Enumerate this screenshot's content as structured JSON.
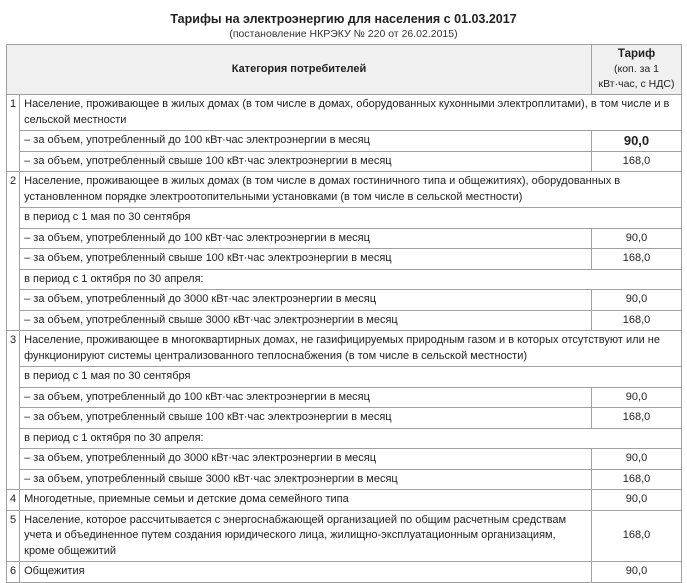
{
  "title": "Тарифы на электроэнергию для населения с 01.03.2017",
  "subtitle": "(постановление НКРЭКУ № 220 от 26.02.2015)",
  "table": {
    "header": {
      "category": "Категория потребителей",
      "tariff_title": "Тариф",
      "tariff_unit": "(коп. за 1 кВт·час, с НДС)"
    },
    "groups": [
      {
        "num": "1",
        "rows": [
          {
            "text": "Население, проживающее в жилых домах (в том числе в домах, оборудованных кухонными электроплитами), в том числе и в сельской местности"
          },
          {
            "text": "– за объем, употребленный до 100 кВт·час электроэнергии в месяц",
            "tariff": "90,0",
            "bold": true
          },
          {
            "text": "– за объем, употребленный свыше 100 кВт·час электроэнергии в месяц",
            "tariff": "168,0"
          }
        ]
      },
      {
        "num": "2",
        "rows": [
          {
            "text": "Население, проживающее в жилых домах (в том числе в домах гостиничного типа и общежитиях), оборудованных в установленном порядке электроотопительными установками (в том числе в сельской местности)"
          },
          {
            "text": "в период с 1 мая по 30 сентября"
          },
          {
            "text": "– за объем, употребленный до 100 кВт·час электроэнергии в месяц",
            "tariff": "90,0"
          },
          {
            "text": "– за объем, употребленный свыше 100 кВт·час электроэнергии в месяц",
            "tariff": "168,0"
          },
          {
            "text": "в период с 1 октября по 30 апреля:"
          },
          {
            "text": "– за объем, употребленный до 3000 кВт·час электроэнергии в месяц",
            "tariff": "90,0"
          },
          {
            "text": "– за объем, употребленный свыше 3000 кВт·час электроэнергии в месяц",
            "tariff": "168,0"
          }
        ]
      },
      {
        "num": "3",
        "rows": [
          {
            "text": "Население, проживающее в многоквартирных домах, не газифицируемых природным газом и в которых отсутствуют или не функционируют системы централизованного теплоснабжения (в том числе в сельской местности)"
          },
          {
            "text": "в период с 1 мая по 30 сентября"
          },
          {
            "text": "– за объем, употребленный до 100 кВт·час электроэнергии в месяц",
            "tariff": "90,0"
          },
          {
            "text": "– за объем, употребленный свыше 100 кВт·час электроэнергии в месяц",
            "tariff": "168,0"
          },
          {
            "text": "в период с 1 октября по 30 апреля:"
          },
          {
            "text": "– за объем, употребленный до 3000 кВт·час электроэнергии в месяц",
            "tariff": "90,0"
          },
          {
            "text": "– за объем, употребленный свыше 3000 кВт·час электроэнергии в месяц",
            "tariff": "168,0"
          }
        ]
      },
      {
        "num": "4",
        "rows": [
          {
            "text": "Многодетные, приемные семьи и детские дома семейного типа",
            "tariff": "90,0"
          }
        ]
      },
      {
        "num": "5",
        "rows": [
          {
            "text": "Население, которое рассчитывается с энергоснабжающей организацией по общим расчетным средствам учета и объединенное путем создания юридического лица, жилищно-эксплуатационным организациям, кроме общежитий",
            "tariff": "168,0"
          }
        ]
      },
      {
        "num": "6",
        "rows": [
          {
            "text": "Общежития",
            "tariff": "90,0"
          }
        ]
      }
    ]
  }
}
